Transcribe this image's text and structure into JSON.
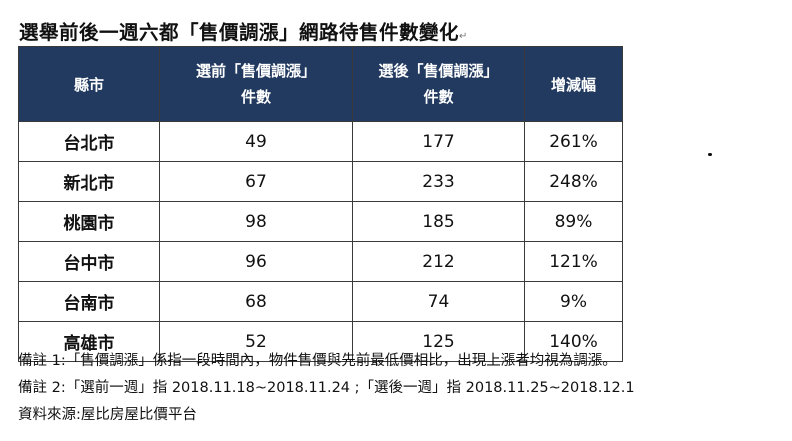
{
  "title": "選舉前後一週六都「售價調漲」網路待售件數變化",
  "para_mark": "↵",
  "table": {
    "headers": {
      "city": "縣市",
      "before_1": "選前「售價調漲」",
      "before_2": "件數",
      "after_1": "選後「售價調漲」",
      "after_2": "件數",
      "change": "增減幅"
    },
    "rows": [
      {
        "city": "台北市",
        "before": "49",
        "after": "177",
        "change": "261%"
      },
      {
        "city": "新北市",
        "before": "67",
        "after": "233",
        "change": "248%"
      },
      {
        "city": "桃園市",
        "before": "98",
        "after": "185",
        "change": "89%"
      },
      {
        "city": "台中市",
        "before": "96",
        "after": "212",
        "change": "121%"
      },
      {
        "city": "台南市",
        "before": "68",
        "after": "74",
        "change": "9%"
      },
      {
        "city": "高雄市",
        "before": "52",
        "after": "125",
        "change": "140%"
      }
    ]
  },
  "notes": {
    "note1": "備註 1:「售價調漲」係指一段時間內，物件售價與先前最低價相比，出現上漲者均視為調漲。",
    "note2": "備註 2:「選前一週」指 2018.11.18~2018.11.24 ;「選後一週」指 2018.11.25~2018.12.1",
    "source": "資料來源:屋比房屋比價平台"
  },
  "colors": {
    "header_bg": "#223a60",
    "header_text": "#ffffff"
  }
}
